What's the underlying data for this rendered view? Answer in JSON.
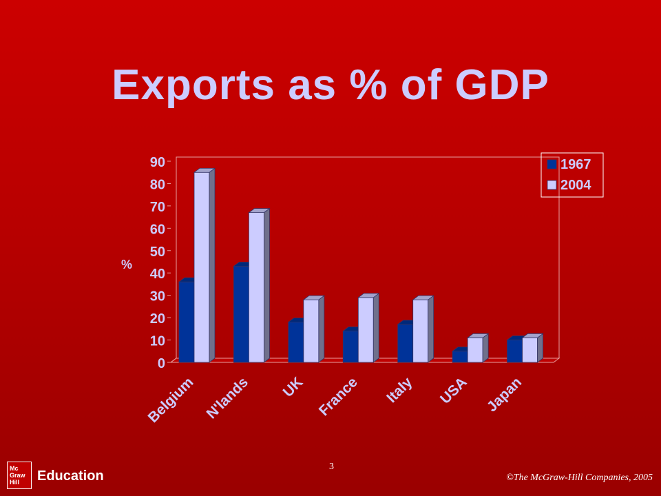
{
  "slide": {
    "title": "Exports as % of GDP",
    "page_number": "3",
    "copyright": "©The McGraw-Hill Companies, 2005",
    "logo": {
      "line1": "Mc",
      "line2": "Graw",
      "line3": "Hill",
      "text": "Education"
    }
  },
  "colors": {
    "series_1967": "#003399",
    "series_2004": "#ccccff",
    "axis_text": "#ccccff",
    "background": "#c00000"
  },
  "chart_data": {
    "type": "bar",
    "title": "Exports as % of GDP",
    "xlabel": "",
    "ylabel": "%",
    "categories": [
      "Belgium",
      "N'lands",
      "UK",
      "France",
      "Italy",
      "USA",
      "Japan"
    ],
    "series": [
      {
        "name": "1967",
        "values": [
          36,
          43,
          18,
          14,
          17,
          5,
          10
        ]
      },
      {
        "name": "2004",
        "values": [
          85,
          67,
          28,
          29,
          28,
          11,
          11
        ]
      }
    ],
    "ylim": [
      0,
      90
    ],
    "yticks": [
      0,
      10,
      20,
      30,
      40,
      50,
      60,
      70,
      80,
      90
    ],
    "grid": false,
    "legend_position": "top-right",
    "style": "3d-clustered-column"
  }
}
